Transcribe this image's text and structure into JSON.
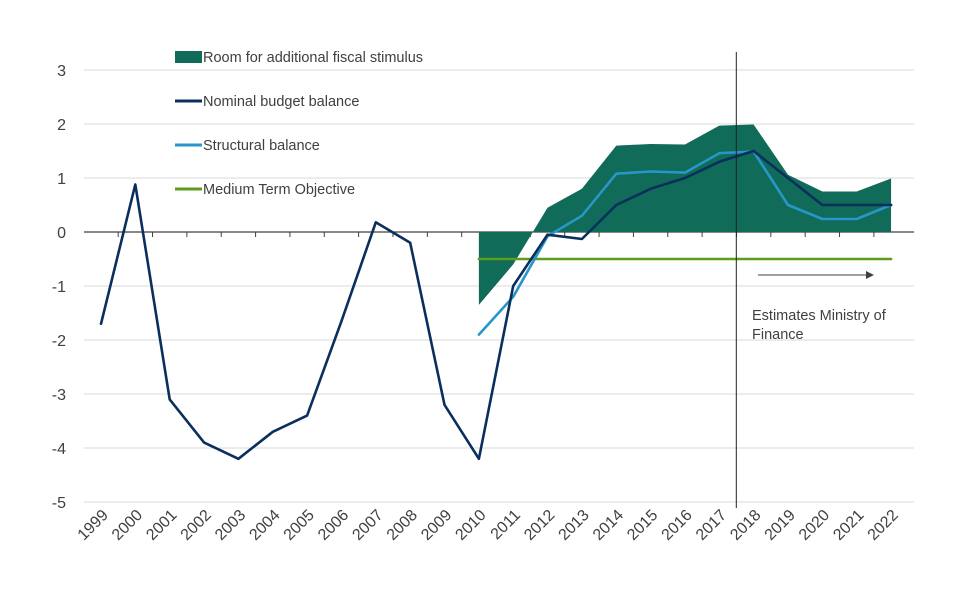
{
  "chart_data": {
    "type": "line",
    "categories": [
      "1999",
      "2000",
      "2001",
      "2002",
      "2003",
      "2004",
      "2005",
      "2006",
      "2007",
      "2008",
      "2009",
      "2010",
      "2011",
      "2012",
      "2013",
      "2014",
      "2015",
      "2016",
      "2017",
      "2018",
      "2019",
      "2020",
      "2021",
      "2022"
    ],
    "ylim": [
      -5,
      3
    ],
    "yticks": [
      3,
      2,
      1,
      0,
      -1,
      -2,
      -3,
      -4,
      -5
    ],
    "grid": true,
    "legend_position": "top-left",
    "colors": {
      "area": "#106B58",
      "nominal": "#0B2F5C",
      "structural": "#2896C8",
      "mto": "#5B9E1E",
      "grid": "#D9D9D9",
      "axis": "#404040"
    },
    "series": [
      {
        "name": "Room for additional fiscal stimulus",
        "kind": "area",
        "values": [
          null,
          null,
          null,
          null,
          null,
          null,
          null,
          null,
          null,
          null,
          null,
          -1.35,
          -0.6,
          0.45,
          0.8,
          1.6,
          1.63,
          1.62,
          1.97,
          1.99,
          1.06,
          0.75,
          0.75,
          0.99
        ]
      },
      {
        "name": "Nominal budget balance",
        "kind": "line",
        "values": [
          -1.7,
          0.88,
          -3.1,
          -3.9,
          -4.2,
          -3.7,
          -3.4,
          -1.65,
          0.18,
          -0.2,
          -3.2,
          -4.2,
          -1.0,
          -0.05,
          -0.13,
          0.5,
          0.8,
          1.0,
          1.3,
          1.5,
          1.0,
          0.5,
          0.5,
          0.5
        ]
      },
      {
        "name": "Structural balance",
        "kind": "line",
        "values": [
          null,
          null,
          null,
          null,
          null,
          null,
          null,
          null,
          null,
          null,
          null,
          -1.9,
          -1.2,
          -0.08,
          0.3,
          1.08,
          1.12,
          1.1,
          1.46,
          1.49,
          0.5,
          0.24,
          0.24,
          0.5
        ]
      },
      {
        "name": "Medium Term Objective",
        "kind": "line",
        "values": [
          null,
          null,
          null,
          null,
          null,
          null,
          null,
          null,
          null,
          null,
          null,
          -0.5,
          -0.5,
          -0.5,
          -0.5,
          -0.5,
          -0.5,
          -0.5,
          -0.5,
          -0.5,
          -0.5,
          -0.5,
          -0.5,
          -0.5
        ]
      }
    ],
    "annotation": {
      "lines": [
        "Estimates Ministry of",
        "Finance"
      ],
      "divider_after_category": "2017"
    }
  }
}
